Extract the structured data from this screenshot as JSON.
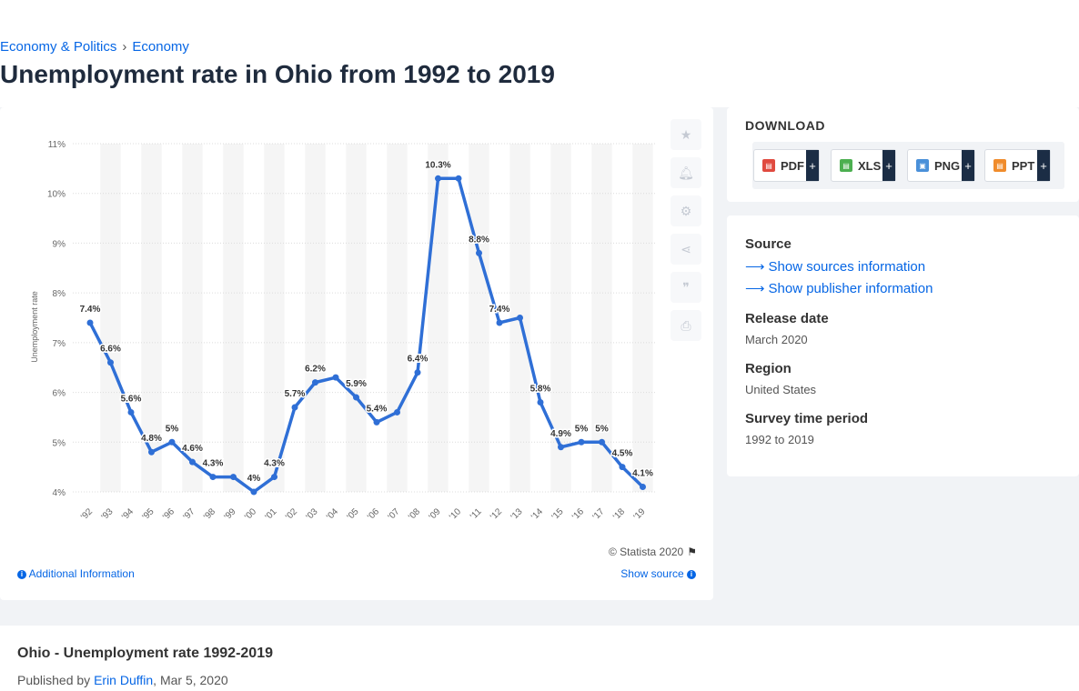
{
  "breadcrumb": {
    "item1": "Economy & Politics",
    "separator": "›",
    "item2": "Economy"
  },
  "page_title": "Unemployment rate in Ohio from 1992 to 2019",
  "toolbar": {
    "icons": [
      "star-icon",
      "bell-icon",
      "gear-icon",
      "share-icon",
      "quote-icon",
      "print-icon"
    ]
  },
  "footer": {
    "copyright": "© Statista 2020",
    "additional_info": "Additional Information",
    "show_source": "Show source"
  },
  "download": {
    "title": "DOWNLOAD",
    "buttons": [
      {
        "label": "PDF",
        "color": "#e04a3f"
      },
      {
        "label": "XLS",
        "color": "#4caf50"
      },
      {
        "label": "PNG",
        "color": "#4a90d9"
      },
      {
        "label": "PPT",
        "color": "#f08c2c"
      }
    ],
    "plus": "+"
  },
  "meta": {
    "source_heading": "Source",
    "show_sources": "Show sources information",
    "show_publisher": "Show publisher information",
    "release_heading": "Release date",
    "release_value": "March 2020",
    "region_heading": "Region",
    "region_value": "United States",
    "period_heading": "Survey time period",
    "period_value": "1992 to 2019"
  },
  "publication": {
    "title": "Ohio - Unemployment rate 1992-2019",
    "published_by": "Published by",
    "author": "Erin Duffin",
    "date": ", Mar 5, 2020"
  },
  "colors": {
    "line": "#2f6fd6",
    "accent": "#0666e5"
  },
  "chart_data": {
    "type": "line",
    "ylabel": "Unemployment rate",
    "x": [
      "'92",
      "'93",
      "'94",
      "'95",
      "'96",
      "'97",
      "'98",
      "'99",
      "'00",
      "'01",
      "'02",
      "'03",
      "'04",
      "'05",
      "'06",
      "'07",
      "'08",
      "'09",
      "'10",
      "'11",
      "'12",
      "'13",
      "'14",
      "'15",
      "'16",
      "'17",
      "'18",
      "'19"
    ],
    "series": [
      {
        "values": [
          7.4,
          6.6,
          5.6,
          4.8,
          5,
          4.6,
          4.3,
          4.3,
          4,
          4.3,
          5.7,
          6.2,
          6.3,
          5.9,
          5.4,
          5.6,
          6.4,
          10.3,
          10.3,
          8.8,
          7.4,
          7.5,
          5.8,
          4.9,
          5,
          5,
          4.5,
          4.1
        ],
        "labels": [
          "7.4%",
          "6.6%",
          "5.6%",
          "4.8%",
          "5%",
          "4.6%",
          "4.3%",
          "",
          "4%",
          "4.3%",
          "5.7%",
          "6.2%",
          "",
          "5.9%",
          "5.4%",
          "",
          "6.4%",
          "10.3%",
          "",
          "8.8%",
          "7.4%",
          "",
          "5.8%",
          "4.9%",
          "5%",
          "5%",
          "4.5%",
          "4.1%"
        ]
      }
    ],
    "yticks": [
      "4%",
      "5%",
      "6%",
      "7%",
      "8%",
      "9%",
      "10%",
      "11%"
    ],
    "ylim": [
      4,
      11
    ],
    "grid": true,
    "legend": "none"
  }
}
